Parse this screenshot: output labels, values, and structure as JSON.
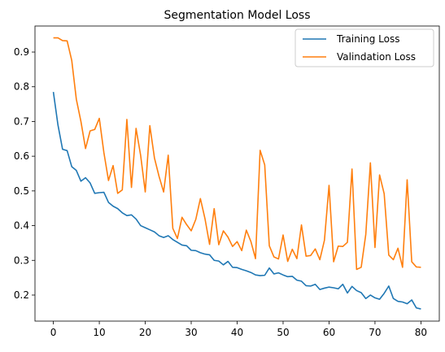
{
  "chart_data": {
    "type": "line",
    "title": "Segmentation Model Loss",
    "xlabel": "",
    "ylabel": "",
    "xlim": [
      -4,
      84
    ],
    "ylim": [
      0.125,
      0.975
    ],
    "x_ticks": [
      0,
      10,
      20,
      30,
      40,
      50,
      60,
      70,
      80
    ],
    "y_ticks": [
      0.2,
      0.3,
      0.4,
      0.5,
      0.6,
      0.7,
      0.8,
      0.9
    ],
    "x_tick_labels": [
      "0",
      "10",
      "20",
      "30",
      "40",
      "50",
      "60",
      "70",
      "80"
    ],
    "y_tick_labels": [
      "0.2",
      "0.3",
      "0.4",
      "0.5",
      "0.6",
      "0.7",
      "0.8",
      "0.9"
    ],
    "grid": false,
    "legend_position": "top-right",
    "x": [
      0,
      1,
      2,
      3,
      4,
      5,
      6,
      7,
      8,
      9,
      10,
      11,
      12,
      13,
      14,
      15,
      16,
      17,
      18,
      19,
      20,
      21,
      22,
      23,
      24,
      25,
      26,
      27,
      28,
      29,
      30,
      31,
      32,
      33,
      34,
      35,
      36,
      37,
      38,
      39,
      40,
      41,
      42,
      43,
      44,
      45,
      46,
      47,
      48,
      49,
      50,
      51,
      52,
      53,
      54,
      55,
      56,
      57,
      58,
      59,
      60,
      61,
      62,
      63,
      64,
      65,
      66,
      67,
      68,
      69,
      70,
      71,
      72,
      73,
      74,
      75,
      76,
      77,
      78,
      79,
      80
    ],
    "series": [
      {
        "name": "Training Loss",
        "color": "#1f77b4",
        "values": [
          0.785,
          0.69,
          0.62,
          0.616,
          0.57,
          0.559,
          0.528,
          0.538,
          0.523,
          0.493,
          0.495,
          0.496,
          0.467,
          0.456,
          0.449,
          0.437,
          0.429,
          0.431,
          0.419,
          0.4,
          0.394,
          0.388,
          0.382,
          0.371,
          0.366,
          0.371,
          0.36,
          0.352,
          0.344,
          0.342,
          0.329,
          0.328,
          0.322,
          0.318,
          0.316,
          0.3,
          0.298,
          0.287,
          0.297,
          0.28,
          0.279,
          0.274,
          0.27,
          0.265,
          0.258,
          0.256,
          0.257,
          0.278,
          0.261,
          0.264,
          0.258,
          0.253,
          0.254,
          0.243,
          0.24,
          0.227,
          0.226,
          0.231,
          0.216,
          0.22,
          0.223,
          0.221,
          0.218,
          0.231,
          0.206,
          0.225,
          0.213,
          0.207,
          0.19,
          0.2,
          0.192,
          0.188,
          0.205,
          0.226,
          0.19,
          0.182,
          0.18,
          0.175,
          0.186,
          0.163,
          0.16
        ]
      },
      {
        "name": "Valindation Loss",
        "color": "#ff7f0e",
        "values": [
          0.941,
          0.941,
          0.933,
          0.932,
          0.876,
          0.764,
          0.7,
          0.622,
          0.673,
          0.677,
          0.709,
          0.61,
          0.53,
          0.573,
          0.493,
          0.503,
          0.706,
          0.51,
          0.68,
          0.602,
          0.497,
          0.688,
          0.595,
          0.542,
          0.497,
          0.603,
          0.392,
          0.363,
          0.424,
          0.403,
          0.385,
          0.418,
          0.478,
          0.42,
          0.346,
          0.449,
          0.345,
          0.385,
          0.367,
          0.34,
          0.354,
          0.328,
          0.387,
          0.354,
          0.305,
          0.617,
          0.575,
          0.342,
          0.31,
          0.304,
          0.373,
          0.297,
          0.332,
          0.305,
          0.402,
          0.312,
          0.314,
          0.333,
          0.302,
          0.358,
          0.516,
          0.296,
          0.341,
          0.34,
          0.352,
          0.563,
          0.274,
          0.28,
          0.375,
          0.581,
          0.337,
          0.546,
          0.492,
          0.315,
          0.302,
          0.335,
          0.28,
          0.532,
          0.296,
          0.281,
          0.28
        ]
      }
    ]
  }
}
